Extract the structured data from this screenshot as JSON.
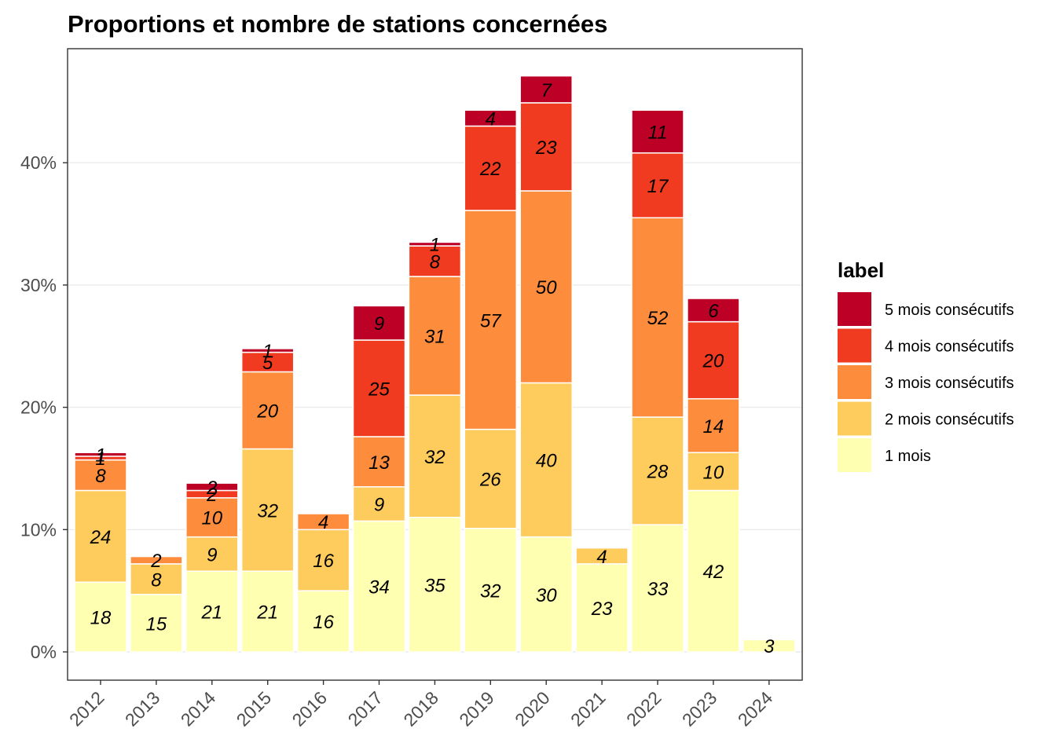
{
  "chart_data": {
    "type": "bar",
    "stacked": true,
    "title": "Proportions et nombre de stations concernées",
    "xlabel": "",
    "ylabel": "",
    "ylim": [
      0,
      0.48
    ],
    "y_ticks": [
      0,
      0.1,
      0.2,
      0.3,
      0.4
    ],
    "y_tick_labels": [
      "0%",
      "10%",
      "20%",
      "30%",
      "40%"
    ],
    "grid": true,
    "legend_title": "label",
    "legend_position": "right",
    "categories": [
      "2012",
      "2013",
      "2014",
      "2015",
      "2016",
      "2017",
      "2018",
      "2019",
      "2020",
      "2021",
      "2022",
      "2023",
      "2024"
    ],
    "series": [
      {
        "name": "1 mois",
        "color": "#ffffb2",
        "values": [
          0.057,
          0.047,
          0.066,
          0.066,
          0.05,
          0.107,
          0.11,
          0.101,
          0.094,
          0.072,
          0.104,
          0.132,
          0.01
        ],
        "counts": [
          "18",
          "15",
          "21",
          "21",
          "16",
          "34",
          "35",
          "32",
          "30",
          "23",
          "33",
          "42",
          "3"
        ]
      },
      {
        "name": "2 mois consécutifs",
        "color": "#fecc5c",
        "values": [
          0.075,
          0.025,
          0.028,
          0.1,
          0.05,
          0.028,
          0.1,
          0.081,
          0.126,
          0.013,
          0.088,
          0.031,
          0
        ],
        "counts": [
          "24",
          "8",
          "9",
          "32",
          "16",
          "9",
          "32",
          "26",
          "40",
          "4",
          "28",
          "10",
          ""
        ]
      },
      {
        "name": "3 mois consécutifs",
        "color": "#fd8d3c",
        "values": [
          0.025,
          0.006,
          0.032,
          0.063,
          0.013,
          0.041,
          0.097,
          0.179,
          0.157,
          0,
          0.163,
          0.044,
          0
        ],
        "counts": [
          "8",
          "2",
          "10",
          "20",
          "4",
          "13",
          "31",
          "57",
          "50",
          "",
          "52",
          "14",
          ""
        ]
      },
      {
        "name": "4 mois consécutifs",
        "color": "#f03b20",
        "values": [
          0.003,
          0,
          0.006,
          0.016,
          0,
          0.079,
          0.025,
          0.069,
          0.072,
          0,
          0.053,
          0.063,
          0
        ],
        "counts": [
          "1",
          "",
          "2",
          "5",
          "",
          "25",
          "8",
          "22",
          "23",
          "",
          "17",
          "20",
          ""
        ]
      },
      {
        "name": "5 mois consécutifs",
        "color": "#bd0026",
        "values": [
          0.003,
          0,
          0.006,
          0.003,
          0,
          0.028,
          0.003,
          0.013,
          0.022,
          0,
          0.035,
          0.019,
          0
        ],
        "counts": [
          "1",
          "",
          "2",
          "1",
          "",
          "9",
          "1",
          "4",
          "7",
          "",
          "11",
          "6",
          ""
        ]
      }
    ]
  }
}
